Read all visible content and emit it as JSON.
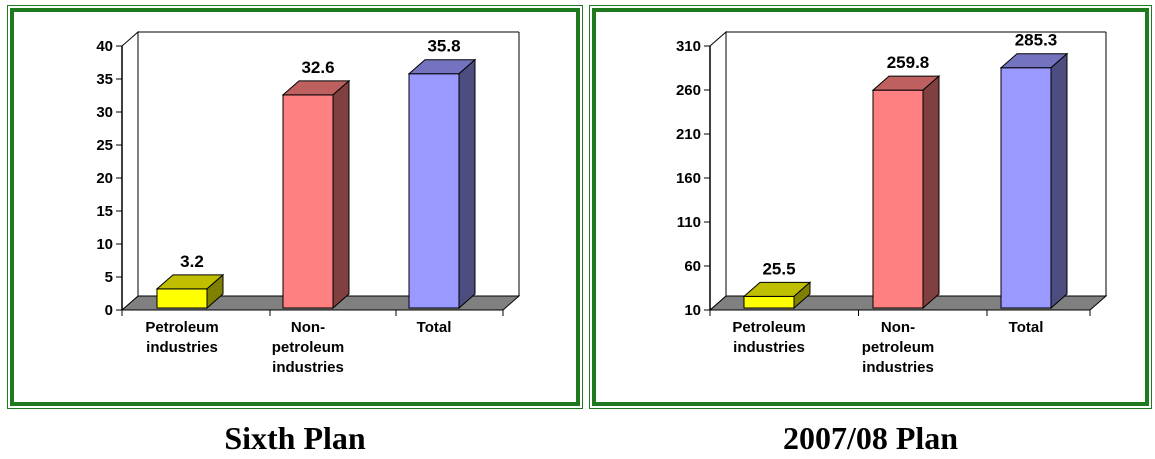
{
  "chart_data": [
    {
      "type": "bar",
      "title": "Sixth Plan",
      "categories": [
        [
          "Petroleum",
          "industries"
        ],
        [
          "Non-",
          "petroleum",
          "industries"
        ],
        [
          "Total"
        ]
      ],
      "values": [
        3.2,
        32.6,
        35.8
      ],
      "value_labels": [
        "3.2",
        "32.6",
        "35.8"
      ],
      "ylim": [
        0,
        40
      ],
      "yticks": [
        0,
        5,
        10,
        15,
        20,
        25,
        30,
        35,
        40
      ],
      "colors": [
        "#ffff00",
        "#ff8080",
        "#9999ff"
      ],
      "three_d": true,
      "grid": false,
      "legend": "none"
    },
    {
      "type": "bar",
      "title": "2007/08 Plan",
      "categories": [
        [
          "Petroleum",
          "industries"
        ],
        [
          "Non-",
          "petroleum",
          "industries"
        ],
        [
          "Total"
        ]
      ],
      "values": [
        25.5,
        259.8,
        285.3
      ],
      "value_labels": [
        "25.5",
        "259.8",
        "285.3"
      ],
      "ylim": [
        10,
        310
      ],
      "yticks": [
        10,
        60,
        110,
        160,
        210,
        260,
        310
      ],
      "colors": [
        "#ffff00",
        "#ff8080",
        "#9999ff"
      ],
      "three_d": true,
      "grid": false,
      "legend": "none"
    }
  ]
}
